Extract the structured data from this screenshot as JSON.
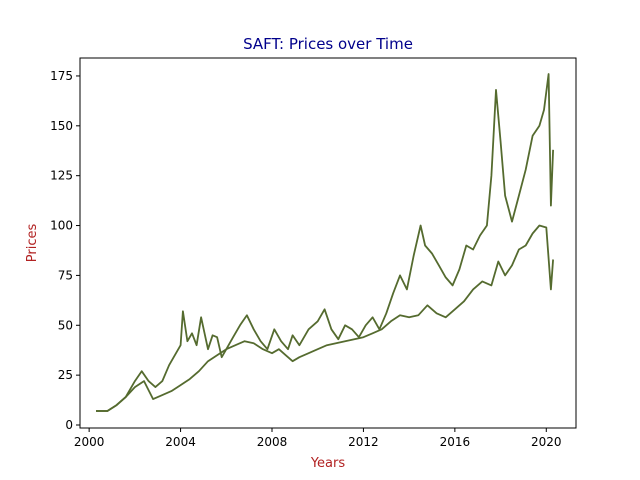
{
  "chart_data": {
    "type": "line",
    "title": "SAFT: Prices over Time",
    "xlabel": "Years",
    "ylabel": "Prices",
    "xlim": [
      1999.6,
      2021.3
    ],
    "ylim": [
      -1.5,
      184
    ],
    "x_ticks": [
      2000,
      2004,
      2008,
      2012,
      2016,
      2020
    ],
    "y_ticks": [
      0,
      25,
      50,
      75,
      100,
      125,
      150,
      175
    ],
    "grid": false,
    "legend": "none",
    "colors": {
      "line": "#556B2F",
      "title": "#00008B",
      "axis_label": "#B22222"
    },
    "series": [
      {
        "x": [
          2000.3,
          2000.8,
          2001.2,
          2001.6,
          2002.0,
          2002.3,
          2002.6,
          2002.9,
          2003.2,
          2003.5,
          2003.8,
          2004.0,
          2004.1,
          2004.3,
          2004.5,
          2004.7,
          2004.9,
          2005.2,
          2005.4,
          2005.6,
          2005.8,
          2006.0,
          2006.3,
          2006.6,
          2006.9,
          2007.2,
          2007.5,
          2007.8,
          2008.1,
          2008.4,
          2008.7,
          2008.9,
          2009.2,
          2009.6,
          2010.0,
          2010.3,
          2010.6,
          2010.9,
          2011.2,
          2011.5,
          2011.8,
          2012.1,
          2012.4,
          2012.7,
          2013.0,
          2013.3,
          2013.6,
          2013.9,
          2014.2,
          2014.5,
          2014.7,
          2015.0,
          2015.3,
          2015.6,
          2015.9,
          2016.2,
          2016.5,
          2016.8,
          2017.1,
          2017.4,
          2017.6,
          2017.8,
          2018.0,
          2018.2,
          2018.5,
          2018.8,
          2019.1,
          2019.4,
          2019.7,
          2019.9,
          2020.1,
          2020.2,
          2020.3
        ],
        "y": [
          7,
          7,
          10,
          14,
          22,
          27,
          22,
          19,
          22,
          30,
          36,
          40,
          57,
          42,
          46,
          40,
          54,
          38,
          45,
          44,
          34,
          38,
          44,
          50,
          55,
          48,
          42,
          38,
          48,
          42,
          38,
          45,
          40,
          48,
          52,
          58,
          48,
          43,
          50,
          48,
          44,
          50,
          54,
          48,
          56,
          66,
          75,
          68,
          85,
          100,
          90,
          86,
          80,
          74,
          70,
          78,
          90,
          88,
          95,
          100,
          125,
          168,
          142,
          115,
          102,
          115,
          128,
          145,
          150,
          158,
          176,
          110,
          138
        ]
      },
      {
        "x": [
          2000.3,
          2000.8,
          2001.2,
          2001.6,
          2002.0,
          2002.4,
          2002.8,
          2003.2,
          2003.6,
          2004.0,
          2004.4,
          2004.8,
          2005.2,
          2005.6,
          2006.0,
          2006.4,
          2006.8,
          2007.2,
          2007.6,
          2008.0,
          2008.3,
          2008.6,
          2008.9,
          2009.2,
          2009.6,
          2010.0,
          2010.4,
          2010.8,
          2011.2,
          2011.6,
          2012.0,
          2012.4,
          2012.8,
          2013.2,
          2013.6,
          2014.0,
          2014.4,
          2014.8,
          2015.2,
          2015.6,
          2016.0,
          2016.4,
          2016.8,
          2017.2,
          2017.6,
          2017.9,
          2018.2,
          2018.5,
          2018.8,
          2019.1,
          2019.4,
          2019.7,
          2020.0,
          2020.2,
          2020.3
        ],
        "y": [
          7,
          7,
          10,
          14,
          19,
          22,
          13,
          15,
          17,
          20,
          23,
          27,
          32,
          35,
          38,
          40,
          42,
          41,
          38,
          36,
          38,
          35,
          32,
          34,
          36,
          38,
          40,
          41,
          42,
          43,
          44,
          46,
          48,
          52,
          55,
          54,
          55,
          60,
          56,
          54,
          58,
          62,
          68,
          72,
          70,
          82,
          75,
          80,
          88,
          90,
          96,
          100,
          99,
          68,
          83
        ]
      }
    ]
  }
}
